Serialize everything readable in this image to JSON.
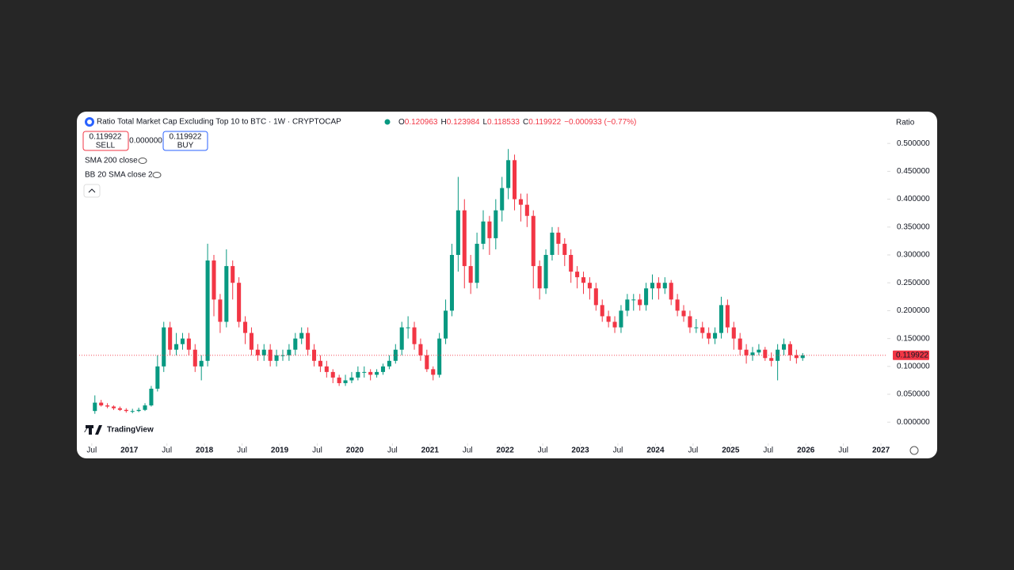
{
  "chart_data": {
    "type": "candlestick",
    "title": "Ratio Total Market Cap Excluding Top 10 to BTC · 1W · CRYPTOCAP",
    "ohlc_legend": [
      {
        "key": "O",
        "value": "0.120963"
      },
      {
        "key": "H",
        "value": "0.123984"
      },
      {
        "key": "L",
        "value": "0.118533"
      },
      {
        "key": "C",
        "value": "0.119922"
      }
    ],
    "change": "−0.000933 (−0.77%)",
    "trade": {
      "sell_price": "0.119922",
      "sell": "SELL",
      "spread": "0.000000",
      "buy_price": "0.119922",
      "buy": "BUY"
    },
    "indicators": [
      "SMA 200 close",
      "BB 20 SMA close 2"
    ],
    "ylabel": "Ratio",
    "watermark": "TradingView",
    "up_color": "#089981",
    "down_color": "#f23645",
    "last_price": 0.119922,
    "grid": false,
    "xlim": [
      "2016-05",
      "2027-02"
    ],
    "ylim": [
      -0.038,
      0.523
    ],
    "yticks": [
      {
        "value": 0,
        "label": "0.000000"
      },
      {
        "value": 0.05,
        "label": "0.050000"
      },
      {
        "value": 0.1,
        "label": "0.100000"
      },
      {
        "value": 0.15,
        "label": "0.150000"
      },
      {
        "value": 0.2,
        "label": "0.200000"
      },
      {
        "value": 0.25,
        "label": "0.250000"
      },
      {
        "value": 0.3,
        "label": "0.300000"
      },
      {
        "value": 0.35,
        "label": "0.350000"
      },
      {
        "value": 0.4,
        "label": "0.400000"
      },
      {
        "value": 0.45,
        "label": "0.450000"
      },
      {
        "value": 0.5,
        "label": "0.500000"
      }
    ],
    "xticks": [
      {
        "value": "2016-07",
        "label": "Jul"
      },
      {
        "value": "2017-01",
        "label": "2017"
      },
      {
        "value": "2017-07",
        "label": "Jul"
      },
      {
        "value": "2018-01",
        "label": "2018"
      },
      {
        "value": "2018-07",
        "label": "Jul"
      },
      {
        "value": "2019-01",
        "label": "2019"
      },
      {
        "value": "2019-07",
        "label": "Jul"
      },
      {
        "value": "2020-01",
        "label": "2020"
      },
      {
        "value": "2020-07",
        "label": "Jul"
      },
      {
        "value": "2021-01",
        "label": "2021"
      },
      {
        "value": "2021-07",
        "label": "Jul"
      },
      {
        "value": "2022-01",
        "label": "2022"
      },
      {
        "value": "2022-07",
        "label": "Jul"
      },
      {
        "value": "2023-01",
        "label": "2023"
      },
      {
        "value": "2023-07",
        "label": "Jul"
      },
      {
        "value": "2024-01",
        "label": "2024"
      },
      {
        "value": "2024-07",
        "label": "Jul"
      },
      {
        "value": "2025-01",
        "label": "2025"
      },
      {
        "value": "2025-07",
        "label": "Jul"
      },
      {
        "value": "2026-01",
        "label": "2026"
      },
      {
        "value": "2026-07",
        "label": "Jul"
      },
      {
        "value": "2027-01",
        "label": "2027"
      }
    ],
    "x": [
      "2016-07",
      "2016-08",
      "2016-09",
      "2016-10",
      "2016-11",
      "2016-12",
      "2017-01",
      "2017-02",
      "2017-03",
      "2017-04",
      "2017-05",
      "2017-06",
      "2017-07",
      "2017-08",
      "2017-09",
      "2017-10",
      "2017-11",
      "2017-12",
      "2018-01",
      "2018-02",
      "2018-03",
      "2018-04",
      "2018-05",
      "2018-06",
      "2018-07",
      "2018-08",
      "2018-09",
      "2018-10",
      "2018-11",
      "2018-12",
      "2019-01",
      "2019-02",
      "2019-03",
      "2019-04",
      "2019-05",
      "2019-06",
      "2019-07",
      "2019-08",
      "2019-09",
      "2019-10",
      "2019-11",
      "2019-12",
      "2020-01",
      "2020-02",
      "2020-03",
      "2020-04",
      "2020-05",
      "2020-06",
      "2020-07",
      "2020-08",
      "2020-09",
      "2020-10",
      "2020-11",
      "2020-12",
      "2021-01",
      "2021-02",
      "2021-03",
      "2021-04",
      "2021-05",
      "2021-06",
      "2021-07",
      "2021-08",
      "2021-09",
      "2021-10",
      "2021-11",
      "2021-12",
      "2022-01",
      "2022-02",
      "2022-03",
      "2022-04",
      "2022-05",
      "2022-06",
      "2022-07",
      "2022-08",
      "2022-09",
      "2022-10",
      "2022-11",
      "2022-12",
      "2023-01",
      "2023-02",
      "2023-03",
      "2023-04",
      "2023-05",
      "2023-06",
      "2023-07",
      "2023-08",
      "2023-09",
      "2023-10",
      "2023-11",
      "2023-12",
      "2024-01",
      "2024-02",
      "2024-03",
      "2024-04",
      "2024-05",
      "2024-06",
      "2024-07",
      "2024-08",
      "2024-09",
      "2024-10",
      "2024-11",
      "2024-12",
      "2025-01",
      "2025-02",
      "2025-03",
      "2025-04",
      "2025-05",
      "2025-06",
      "2025-07",
      "2025-08",
      "2025-09",
      "2025-10",
      "2025-11",
      "2025-12"
    ],
    "open": [
      0.02,
      0.035,
      0.03,
      0.028,
      0.025,
      0.022,
      0.02,
      0.02,
      0.022,
      0.03,
      0.06,
      0.1,
      0.17,
      0.13,
      0.14,
      0.15,
      0.13,
      0.1,
      0.11,
      0.29,
      0.22,
      0.18,
      0.28,
      0.25,
      0.18,
      0.16,
      0.13,
      0.12,
      0.13,
      0.11,
      0.12,
      0.12,
      0.13,
      0.15,
      0.16,
      0.13,
      0.11,
      0.1,
      0.09,
      0.08,
      0.07,
      0.075,
      0.08,
      0.09,
      0.09,
      0.085,
      0.09,
      0.1,
      0.11,
      0.13,
      0.17,
      0.17,
      0.14,
      0.12,
      0.095,
      0.085,
      0.15,
      0.2,
      0.3,
      0.38,
      0.28,
      0.25,
      0.32,
      0.36,
      0.33,
      0.38,
      0.42,
      0.47,
      0.4,
      0.39,
      0.37,
      0.28,
      0.24,
      0.3,
      0.34,
      0.32,
      0.3,
      0.27,
      0.26,
      0.25,
      0.24,
      0.21,
      0.19,
      0.18,
      0.17,
      0.2,
      0.22,
      0.22,
      0.21,
      0.24,
      0.25,
      0.24,
      0.25,
      0.22,
      0.2,
      0.19,
      0.17,
      0.17,
      0.16,
      0.15,
      0.16,
      0.21,
      0.17,
      0.15,
      0.13,
      0.12,
      0.125,
      0.13,
      0.115,
      0.11,
      0.13,
      0.14,
      0.12,
      0.115
    ],
    "high": [
      0.048,
      0.04,
      0.034,
      0.03,
      0.028,
      0.025,
      0.024,
      0.026,
      0.034,
      0.065,
      0.12,
      0.18,
      0.18,
      0.16,
      0.16,
      0.16,
      0.14,
      0.12,
      0.32,
      0.3,
      0.23,
      0.31,
      0.29,
      0.26,
      0.19,
      0.17,
      0.14,
      0.14,
      0.14,
      0.13,
      0.13,
      0.14,
      0.16,
      0.17,
      0.17,
      0.14,
      0.12,
      0.11,
      0.095,
      0.085,
      0.085,
      0.09,
      0.1,
      0.1,
      0.095,
      0.095,
      0.105,
      0.12,
      0.14,
      0.18,
      0.19,
      0.18,
      0.15,
      0.13,
      0.1,
      0.16,
      0.22,
      0.32,
      0.44,
      0.4,
      0.3,
      0.34,
      0.38,
      0.37,
      0.4,
      0.44,
      0.49,
      0.48,
      0.41,
      0.41,
      0.38,
      0.29,
      0.31,
      0.35,
      0.35,
      0.33,
      0.31,
      0.28,
      0.27,
      0.26,
      0.25,
      0.22,
      0.2,
      0.19,
      0.21,
      0.23,
      0.23,
      0.23,
      0.25,
      0.265,
      0.26,
      0.26,
      0.255,
      0.23,
      0.21,
      0.2,
      0.185,
      0.18,
      0.17,
      0.17,
      0.225,
      0.22,
      0.18,
      0.16,
      0.14,
      0.135,
      0.14,
      0.135,
      0.125,
      0.14,
      0.15,
      0.145,
      0.13,
      0.124
    ],
    "low": [
      0.015,
      0.028,
      0.025,
      0.022,
      0.02,
      0.017,
      0.016,
      0.018,
      0.02,
      0.028,
      0.055,
      0.09,
      0.12,
      0.12,
      0.13,
      0.12,
      0.09,
      0.075,
      0.1,
      0.19,
      0.16,
      0.17,
      0.22,
      0.17,
      0.14,
      0.12,
      0.11,
      0.11,
      0.1,
      0.1,
      0.11,
      0.11,
      0.12,
      0.14,
      0.12,
      0.1,
      0.09,
      0.08,
      0.07,
      0.065,
      0.065,
      0.07,
      0.075,
      0.08,
      0.075,
      0.08,
      0.085,
      0.095,
      0.105,
      0.12,
      0.15,
      0.13,
      0.11,
      0.09,
      0.075,
      0.08,
      0.14,
      0.19,
      0.27,
      0.24,
      0.23,
      0.24,
      0.31,
      0.3,
      0.31,
      0.36,
      0.4,
      0.38,
      0.36,
      0.35,
      0.24,
      0.22,
      0.23,
      0.29,
      0.3,
      0.28,
      0.25,
      0.24,
      0.23,
      0.22,
      0.2,
      0.18,
      0.17,
      0.16,
      0.16,
      0.19,
      0.2,
      0.2,
      0.2,
      0.22,
      0.22,
      0.23,
      0.21,
      0.19,
      0.18,
      0.16,
      0.16,
      0.15,
      0.14,
      0.14,
      0.15,
      0.16,
      0.13,
      0.12,
      0.105,
      0.11,
      0.12,
      0.11,
      0.1,
      0.075,
      0.12,
      0.11,
      0.105,
      0.11
    ],
    "close": [
      0.035,
      0.03,
      0.028,
      0.025,
      0.022,
      0.02,
      0.02,
      0.022,
      0.03,
      0.06,
      0.1,
      0.17,
      0.13,
      0.14,
      0.15,
      0.13,
      0.1,
      0.11,
      0.29,
      0.22,
      0.18,
      0.28,
      0.25,
      0.18,
      0.16,
      0.13,
      0.12,
      0.13,
      0.11,
      0.12,
      0.12,
      0.13,
      0.15,
      0.16,
      0.13,
      0.11,
      0.1,
      0.09,
      0.08,
      0.07,
      0.075,
      0.08,
      0.09,
      0.09,
      0.085,
      0.09,
      0.1,
      0.11,
      0.13,
      0.17,
      0.17,
      0.14,
      0.12,
      0.095,
      0.085,
      0.15,
      0.2,
      0.3,
      0.38,
      0.28,
      0.25,
      0.32,
      0.36,
      0.33,
      0.38,
      0.42,
      0.47,
      0.4,
      0.39,
      0.37,
      0.28,
      0.24,
      0.3,
      0.34,
      0.32,
      0.3,
      0.27,
      0.26,
      0.25,
      0.24,
      0.21,
      0.19,
      0.18,
      0.17,
      0.2,
      0.22,
      0.22,
      0.21,
      0.24,
      0.25,
      0.24,
      0.25,
      0.22,
      0.2,
      0.19,
      0.17,
      0.17,
      0.16,
      0.15,
      0.16,
      0.21,
      0.17,
      0.15,
      0.13,
      0.12,
      0.125,
      0.13,
      0.115,
      0.11,
      0.13,
      0.14,
      0.12,
      0.115,
      0.119922
    ]
  }
}
